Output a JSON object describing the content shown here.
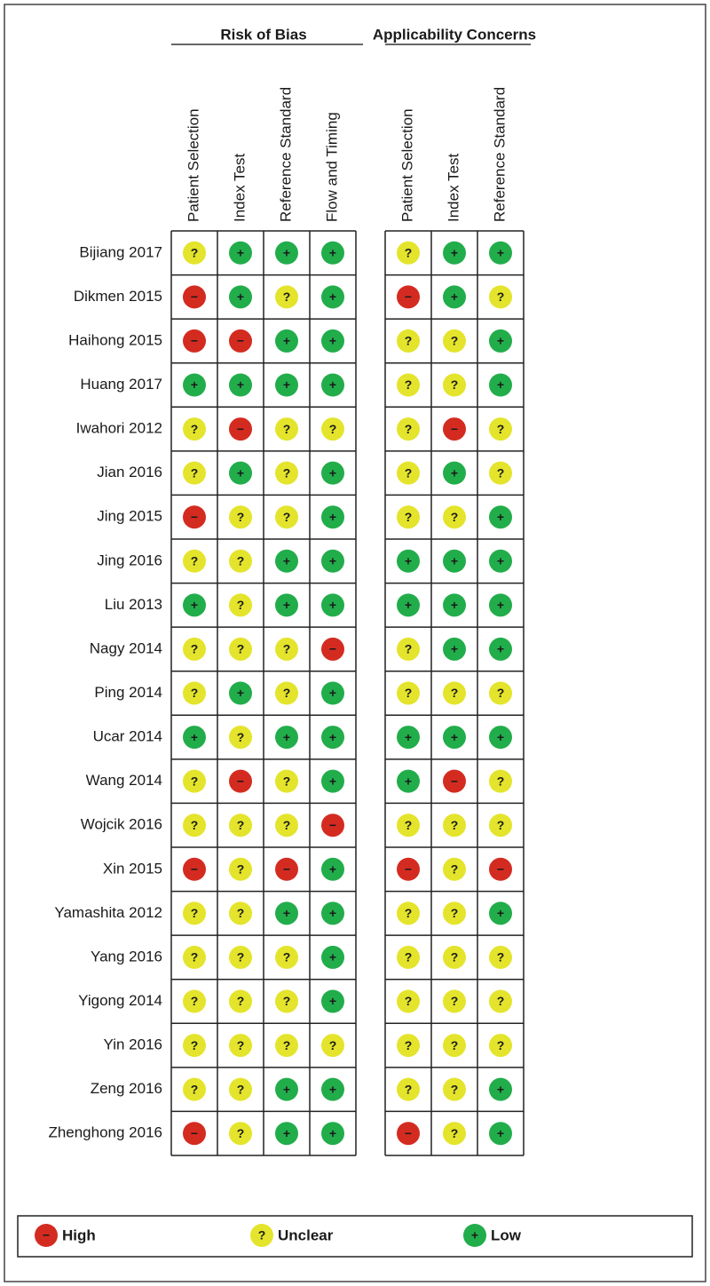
{
  "risk_of_bias": {
    "title": "Risk of Bias",
    "columns": [
      "Patient Selection",
      "Index Test",
      "Reference Standard",
      "Flow and Timing"
    ]
  },
  "applicability": {
    "title": "Applicability Concerns",
    "columns": [
      "Patient Selection",
      "Index Test",
      "Reference Standard"
    ]
  },
  "rows": [
    {
      "study": "Bijiang 2017",
      "risk_of_bias": [
        "?",
        "+",
        "+",
        "+"
      ],
      "applicability": [
        "?",
        "+",
        "+"
      ]
    },
    {
      "study": "Dikmen 2015",
      "risk_of_bias": [
        "−",
        "+",
        "?",
        "+"
      ],
      "applicability": [
        "−",
        "+",
        "?"
      ]
    },
    {
      "study": "Haihong 2015",
      "risk_of_bias": [
        "−",
        "−",
        "+",
        "+"
      ],
      "applicability": [
        "?",
        "?",
        "+"
      ]
    },
    {
      "study": "Huang 2017",
      "risk_of_bias": [
        "+",
        "+",
        "+",
        "+"
      ],
      "applicability": [
        "?",
        "?",
        "+"
      ]
    },
    {
      "study": "Iwahori 2012",
      "risk_of_bias": [
        "?",
        "−",
        "?",
        "?"
      ],
      "applicability": [
        "?",
        "−",
        "?"
      ]
    },
    {
      "study": "Jian 2016",
      "risk_of_bias": [
        "?",
        "+",
        "?",
        "+"
      ],
      "applicability": [
        "?",
        "+",
        "?"
      ]
    },
    {
      "study": "Jing 2015",
      "risk_of_bias": [
        "−",
        "?",
        "?",
        "+"
      ],
      "applicability": [
        "?",
        "?",
        "+"
      ]
    },
    {
      "study": "Jing 2016",
      "risk_of_bias": [
        "?",
        "?",
        "+",
        "+"
      ],
      "applicability": [
        "+",
        "+",
        "+"
      ]
    },
    {
      "study": "Liu 2013",
      "risk_of_bias": [
        "+",
        "?",
        "+",
        "+"
      ],
      "applicability": [
        "+",
        "+",
        "+"
      ]
    },
    {
      "study": "Nagy 2014",
      "risk_of_bias": [
        "?",
        "?",
        "?",
        "−"
      ],
      "applicability": [
        "?",
        "+",
        "+"
      ]
    },
    {
      "study": "Ping 2014",
      "risk_of_bias": [
        "?",
        "+",
        "?",
        "+"
      ],
      "applicability": [
        "?",
        "?",
        "?"
      ]
    },
    {
      "study": "Ucar 2014",
      "risk_of_bias": [
        "+",
        "?",
        "+",
        "+"
      ],
      "applicability": [
        "+",
        "+",
        "+"
      ]
    },
    {
      "study": "Wang 2014",
      "risk_of_bias": [
        "?",
        "−",
        "?",
        "+"
      ],
      "applicability": [
        "+",
        "−",
        "?"
      ]
    },
    {
      "study": "Wojcik 2016",
      "risk_of_bias": [
        "?",
        "?",
        "?",
        "−"
      ],
      "applicability": [
        "?",
        "?",
        "?"
      ]
    },
    {
      "study": "Xin 2015",
      "risk_of_bias": [
        "−",
        "?",
        "−",
        "+"
      ],
      "applicability": [
        "−",
        "?",
        "−"
      ]
    },
    {
      "study": "Yamashita 2012",
      "risk_of_bias": [
        "?",
        "?",
        "+",
        "+"
      ],
      "applicability": [
        "?",
        "?",
        "+"
      ]
    },
    {
      "study": "Yang 2016",
      "risk_of_bias": [
        "?",
        "?",
        "?",
        "+"
      ],
      "applicability": [
        "?",
        "?",
        "?"
      ]
    },
    {
      "study": "Yigong 2014",
      "risk_of_bias": [
        "?",
        "?",
        "?",
        "+"
      ],
      "applicability": [
        "?",
        "?",
        "?"
      ]
    },
    {
      "study": "Yin 2016",
      "risk_of_bias": [
        "?",
        "?",
        "?",
        "?"
      ],
      "applicability": [
        "?",
        "?",
        "?"
      ]
    },
    {
      "study": "Zeng 2016",
      "risk_of_bias": [
        "?",
        "?",
        "+",
        "+"
      ],
      "applicability": [
        "?",
        "?",
        "+"
      ]
    },
    {
      "study": "Zhenghong 2016",
      "risk_of_bias": [
        "−",
        "?",
        "+",
        "+"
      ],
      "applicability": [
        "−",
        "?",
        "+"
      ]
    }
  ],
  "legend": [
    {
      "symbol": "−",
      "label": "High",
      "color": "#d42b21"
    },
    {
      "symbol": "?",
      "label": "Unclear",
      "color": "#e4e42c"
    },
    {
      "symbol": "+",
      "label": "Low",
      "color": "#22ad4b"
    }
  ]
}
